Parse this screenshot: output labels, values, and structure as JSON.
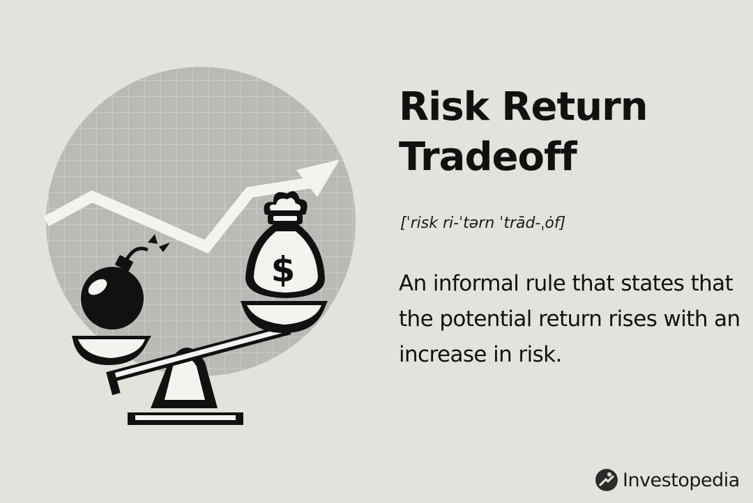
{
  "title_lines": [
    "Risk Return",
    "Tradeoff"
  ],
  "pronunciation": "[ˈrisk ri-ˈtərn ˈtrād-ˌȯf]",
  "definition": "An informal rule that states that the potential return rises with an increase in risk.",
  "brand": {
    "name": "Investopedia",
    "logo_icon": "investopedia-logo-icon"
  },
  "illustration": {
    "money_symbol": "$",
    "icons": [
      "grid-circle-background",
      "trend-arrow-icon",
      "balance-scale-icon",
      "bomb-icon",
      "money-bag-icon"
    ]
  },
  "colors": {
    "background": "#e4e2dc",
    "circle": "#b9b9b6",
    "grid": "#d0d0cc",
    "ink": "#111111",
    "white": "#f4f3ef"
  }
}
